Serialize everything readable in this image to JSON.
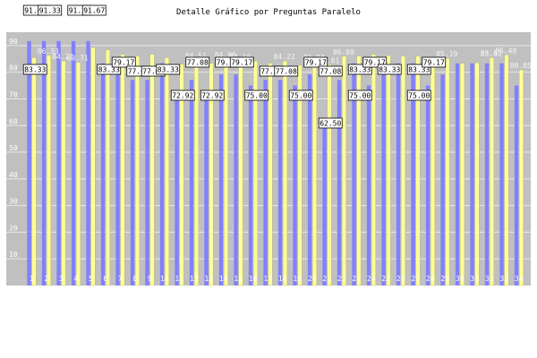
{
  "chart_data": {
    "type": "bar",
    "title": "Detalle Gráfico por Preguntas Paralelo",
    "xlabel": "",
    "ylabel": "",
    "ylim": [
      0,
      95
    ],
    "y_ticks": [
      10,
      20,
      30,
      40,
      50,
      60,
      70,
      80,
      90
    ],
    "grid": true,
    "legend": "none",
    "categories": [
      "1",
      "2",
      "3",
      "4",
      "5",
      "6",
      "7",
      "8",
      "9",
      "10",
      "11",
      "12",
      "13",
      "14",
      "15",
      "16",
      "17",
      "18",
      "19",
      "20",
      "21",
      "22",
      "23",
      "24",
      "25",
      "26",
      "27",
      "28",
      "29",
      "30",
      "31",
      "32",
      "33",
      "34"
    ],
    "series": [
      {
        "values": [
          91.67,
          91.67,
          91.67,
          91.67,
          91.67,
          83.33,
          79.17,
          77.08,
          77.08,
          83.33,
          72.92,
          77.08,
          72.92,
          79.17,
          79.17,
          75.0,
          77.08,
          77.08,
          75.0,
          79.17,
          62.5,
          77.08,
          83.33,
          75.0,
          79.17,
          83.33,
          83.33,
          75.0,
          79.17,
          83.33,
          83.33,
          83.33,
          83.33,
          75.0
        ]
      },
      {
        "values": [
          85.42,
          86.33,
          84.21,
          83.71,
          89.2,
          88.41,
          86.67,
          86.0,
          86.67,
          85.42,
          82.98,
          84.51,
          83.33,
          84.86,
          84.16,
          84.16,
          83.33,
          84.22,
          82.5,
          83.94,
          82.81,
          86.0,
          86.0,
          86.67,
          86.22,
          86.0,
          86.0,
          85.0,
          85.19,
          83.33,
          83.52,
          85.42,
          86.48,
          80.85
        ]
      }
    ],
    "data_labels": [
      "91.67",
      "83.33",
      "83.33",
      "91.33",
      "91.33",
      "91.67",
      "83.33",
      "79.17",
      "77.08",
      "77.08",
      "83.33",
      "72.92",
      "77.08",
      "72.92",
      "79.17",
      "79.17",
      "75.00",
      "77.33",
      "77.08",
      "75.00",
      "79.17",
      "62.50",
      "77.08",
      "83.33",
      "75.00",
      "79.17",
      "83.33",
      "83.33",
      "75.00",
      "79.17",
      "86.33",
      "84.21",
      "83.71",
      "84.51",
      "84.86",
      "84.16",
      "84.22",
      "83.94",
      "82.81",
      "86.00",
      "85.19",
      "83.52",
      "85.42",
      "86.48",
      "80.85"
    ],
    "colors": {
      "series1": "#8080ff",
      "series2": "#ffff99",
      "plot_bg": "#c0c0c0",
      "grid": "#e8e8e8"
    }
  }
}
